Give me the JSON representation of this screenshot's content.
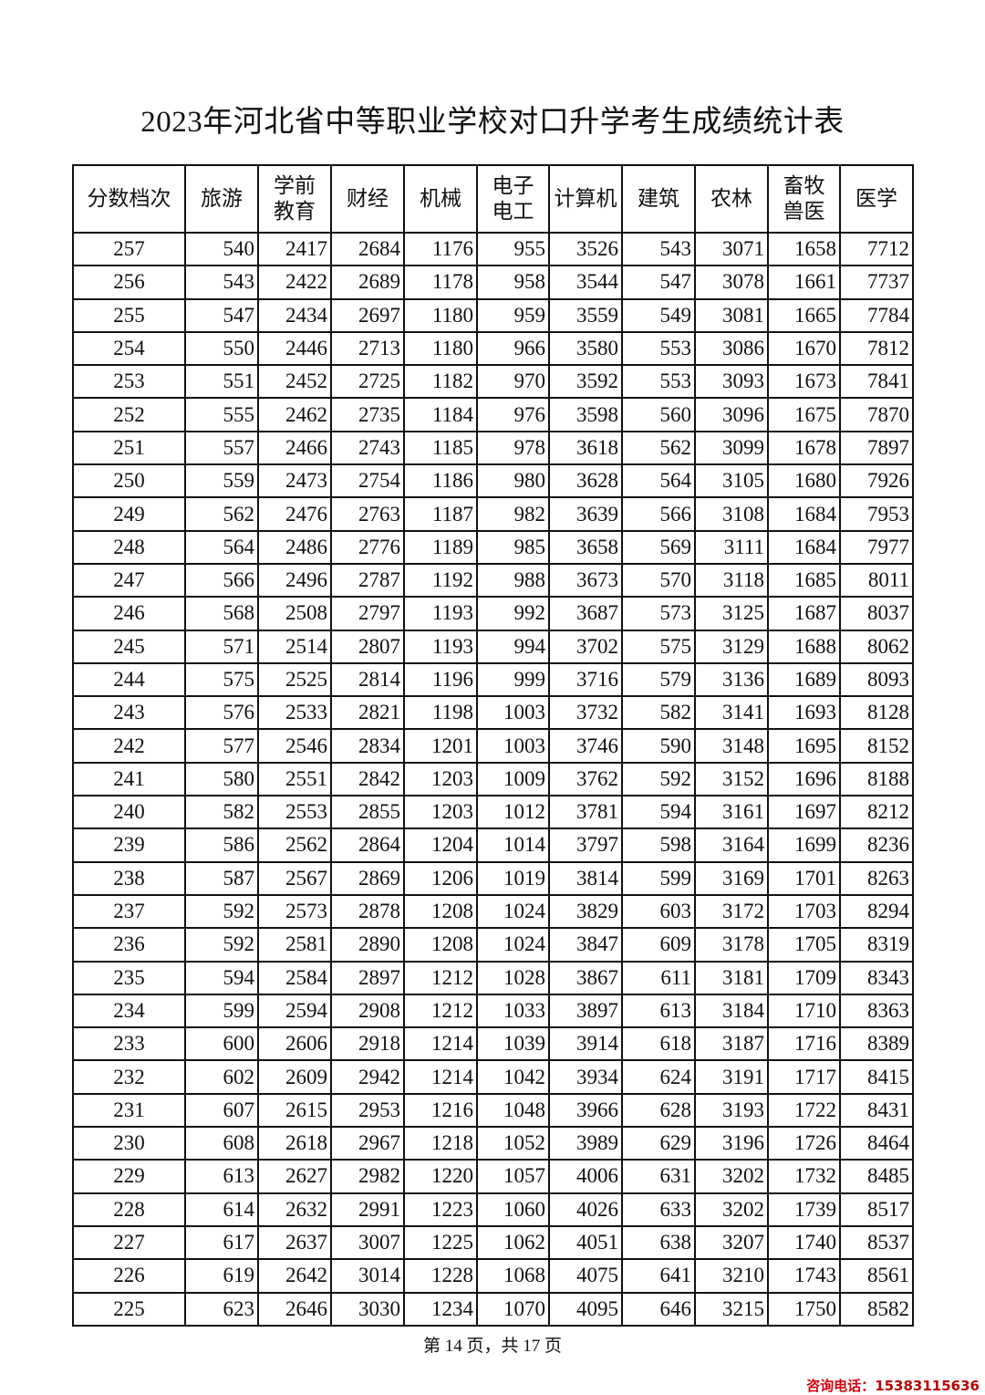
{
  "title": "2023年河北省中等职业学校对口升学考生成绩统计表",
  "table": {
    "headers": [
      "分数档次",
      "旅游",
      "学前\n教育",
      "财经",
      "机械",
      "电子\n电工",
      "计算机",
      "建筑",
      "农林",
      "畜牧\n兽医",
      "医学"
    ],
    "rows": [
      [
        "257",
        "540",
        "2417",
        "2684",
        "1176",
        "955",
        "3526",
        "543",
        "3071",
        "1658",
        "7712"
      ],
      [
        "256",
        "543",
        "2422",
        "2689",
        "1178",
        "958",
        "3544",
        "547",
        "3078",
        "1661",
        "7737"
      ],
      [
        "255",
        "547",
        "2434",
        "2697",
        "1180",
        "959",
        "3559",
        "549",
        "3081",
        "1665",
        "7784"
      ],
      [
        "254",
        "550",
        "2446",
        "2713",
        "1180",
        "966",
        "3580",
        "553",
        "3086",
        "1670",
        "7812"
      ],
      [
        "253",
        "551",
        "2452",
        "2725",
        "1182",
        "970",
        "3592",
        "553",
        "3093",
        "1673",
        "7841"
      ],
      [
        "252",
        "555",
        "2462",
        "2735",
        "1184",
        "976",
        "3598",
        "560",
        "3096",
        "1675",
        "7870"
      ],
      [
        "251",
        "557",
        "2466",
        "2743",
        "1185",
        "978",
        "3618",
        "562",
        "3099",
        "1678",
        "7897"
      ],
      [
        "250",
        "559",
        "2473",
        "2754",
        "1186",
        "980",
        "3628",
        "564",
        "3105",
        "1680",
        "7926"
      ],
      [
        "249",
        "562",
        "2476",
        "2763",
        "1187",
        "982",
        "3639",
        "566",
        "3108",
        "1684",
        "7953"
      ],
      [
        "248",
        "564",
        "2486",
        "2776",
        "1189",
        "985",
        "3658",
        "569",
        "3111",
        "1684",
        "7977"
      ],
      [
        "247",
        "566",
        "2496",
        "2787",
        "1192",
        "988",
        "3673",
        "570",
        "3118",
        "1685",
        "8011"
      ],
      [
        "246",
        "568",
        "2508",
        "2797",
        "1193",
        "992",
        "3687",
        "573",
        "3125",
        "1687",
        "8037"
      ],
      [
        "245",
        "571",
        "2514",
        "2807",
        "1193",
        "994",
        "3702",
        "575",
        "3129",
        "1688",
        "8062"
      ],
      [
        "244",
        "575",
        "2525",
        "2814",
        "1196",
        "999",
        "3716",
        "579",
        "3136",
        "1689",
        "8093"
      ],
      [
        "243",
        "576",
        "2533",
        "2821",
        "1198",
        "1003",
        "3732",
        "582",
        "3141",
        "1693",
        "8128"
      ],
      [
        "242",
        "577",
        "2546",
        "2834",
        "1201",
        "1003",
        "3746",
        "590",
        "3148",
        "1695",
        "8152"
      ],
      [
        "241",
        "580",
        "2551",
        "2842",
        "1203",
        "1009",
        "3762",
        "592",
        "3152",
        "1696",
        "8188"
      ],
      [
        "240",
        "582",
        "2553",
        "2855",
        "1203",
        "1012",
        "3781",
        "594",
        "3161",
        "1697",
        "8212"
      ],
      [
        "239",
        "586",
        "2562",
        "2864",
        "1204",
        "1014",
        "3797",
        "598",
        "3164",
        "1699",
        "8236"
      ],
      [
        "238",
        "587",
        "2567",
        "2869",
        "1206",
        "1019",
        "3814",
        "599",
        "3169",
        "1701",
        "8263"
      ],
      [
        "237",
        "592",
        "2573",
        "2878",
        "1208",
        "1024",
        "3829",
        "603",
        "3172",
        "1703",
        "8294"
      ],
      [
        "236",
        "592",
        "2581",
        "2890",
        "1208",
        "1024",
        "3847",
        "609",
        "3178",
        "1705",
        "8319"
      ],
      [
        "235",
        "594",
        "2584",
        "2897",
        "1212",
        "1028",
        "3867",
        "611",
        "3181",
        "1709",
        "8343"
      ],
      [
        "234",
        "599",
        "2594",
        "2908",
        "1212",
        "1033",
        "3897",
        "613",
        "3184",
        "1710",
        "8363"
      ],
      [
        "233",
        "600",
        "2606",
        "2918",
        "1214",
        "1039",
        "3914",
        "618",
        "3187",
        "1716",
        "8389"
      ],
      [
        "232",
        "602",
        "2609",
        "2942",
        "1214",
        "1042",
        "3934",
        "624",
        "3191",
        "1717",
        "8415"
      ],
      [
        "231",
        "607",
        "2615",
        "2953",
        "1216",
        "1048",
        "3966",
        "628",
        "3193",
        "1722",
        "8431"
      ],
      [
        "230",
        "608",
        "2618",
        "2967",
        "1218",
        "1052",
        "3989",
        "629",
        "3196",
        "1726",
        "8464"
      ],
      [
        "229",
        "613",
        "2627",
        "2982",
        "1220",
        "1057",
        "4006",
        "631",
        "3202",
        "1732",
        "8485"
      ],
      [
        "228",
        "614",
        "2632",
        "2991",
        "1223",
        "1060",
        "4026",
        "633",
        "3202",
        "1739",
        "8517"
      ],
      [
        "227",
        "617",
        "2637",
        "3007",
        "1225",
        "1062",
        "4051",
        "638",
        "3207",
        "1740",
        "8537"
      ],
      [
        "226",
        "619",
        "2642",
        "3014",
        "1228",
        "1068",
        "4075",
        "641",
        "3210",
        "1743",
        "8561"
      ],
      [
        "225",
        "623",
        "2646",
        "3030",
        "1234",
        "1070",
        "4095",
        "646",
        "3215",
        "1750",
        "8582"
      ]
    ]
  },
  "footer": "第 14 页，共 17 页",
  "contact": {
    "label": "咨询电话：",
    "number": "15383115636"
  }
}
